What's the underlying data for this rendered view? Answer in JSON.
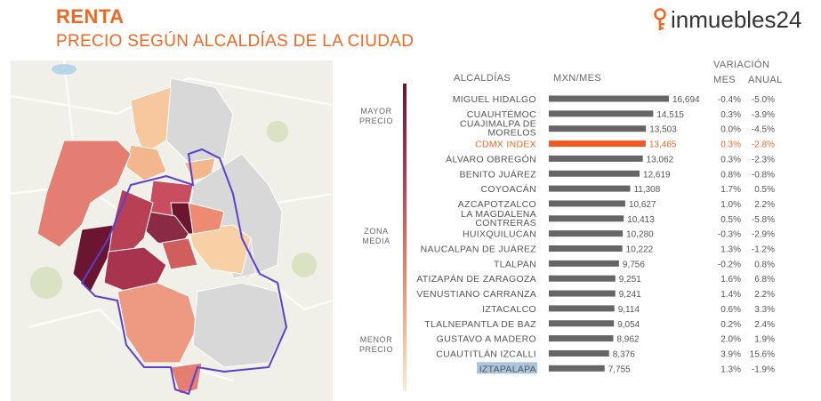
{
  "header": {
    "title": "RENTA",
    "subtitle": "PRECIO SEGÚN ALCALDÍAS DE LA CIUDAD",
    "brand": "inmuebles24"
  },
  "scale": {
    "top": [
      "MAYOR",
      "PRECIO"
    ],
    "middle": [
      "ZONA",
      "MEDIA"
    ],
    "bottom": [
      "MENOR",
      "PRECIO"
    ]
  },
  "colors": {
    "accent": "#f26722",
    "bar": "#666666",
    "highlight_bar": "#f15a24",
    "selection": "#a9c6dd",
    "map_dark": "#6b1531",
    "map_light": "#fcd3a4",
    "map_outline": "#5b3fd1"
  },
  "chart_data": {
    "type": "bar",
    "orientation": "horizontal",
    "columns": {
      "category": "ALCALDÍAS",
      "value": "MXN/MES",
      "variation": "VARIACIÓN",
      "monthly": "MES",
      "annual": "ANUAL"
    },
    "highlight": "CDMX INDEX",
    "selected": "IZTAPALAPA",
    "rows": [
      {
        "name": [
          "MIGUEL HIDALGO"
        ],
        "value": 16694,
        "label": "16,694",
        "mes": "-0.4%",
        "anual": "-5.0%"
      },
      {
        "name": [
          "CUAUHTÉMOC"
        ],
        "value": 14515,
        "label": "14,515",
        "mes": "0.3%",
        "anual": "-3.9%"
      },
      {
        "name": [
          "CUAJIMALPA DE",
          "MORELOS"
        ],
        "value": 13503,
        "label": "13,503",
        "mes": "0.0%",
        "anual": "-4.5%"
      },
      {
        "name": [
          "CDMX INDEX"
        ],
        "value": 13465,
        "label": "13,465",
        "mes": "0.3%",
        "anual": "-2.8%"
      },
      {
        "name": [
          "ÁLVARO OBREGÓN"
        ],
        "value": 13062,
        "label": "13,062",
        "mes": "0.3%",
        "anual": "-2.3%"
      },
      {
        "name": [
          "BENITO JUÁREZ"
        ],
        "value": 12619,
        "label": "12,619",
        "mes": "0.8%",
        "anual": "-0.8%"
      },
      {
        "name": [
          "COYOACÁN"
        ],
        "value": 11308,
        "label": "11,308",
        "mes": "1.7%",
        "anual": "0.5%"
      },
      {
        "name": [
          "AZCAPOTZALCO"
        ],
        "value": 10627,
        "label": "10,627",
        "mes": "1.0%",
        "anual": "2.2%"
      },
      {
        "name": [
          "LA MAGDALENA",
          "CONTRERAS"
        ],
        "value": 10413,
        "label": "10,413",
        "mes": "0.5%",
        "anual": "-5.8%"
      },
      {
        "name": [
          "HUIXQUILUCAN"
        ],
        "value": 10280,
        "label": "10,280",
        "mes": "-0.3%",
        "anual": "-2.9%"
      },
      {
        "name": [
          "NAUCALPAN DE JUÁREZ"
        ],
        "value": 10222,
        "label": "10,222",
        "mes": "1.3%",
        "anual": "-1.2%"
      },
      {
        "name": [
          "TLALPAN"
        ],
        "value": 9756,
        "label": "9,756",
        "mes": "-0.2%",
        "anual": "0.8%"
      },
      {
        "name": [
          "ATIZAPÁN DE ZARAGOZA"
        ],
        "value": 9251,
        "label": "9,251",
        "mes": "1.6%",
        "anual": "6.8%"
      },
      {
        "name": [
          "VENUSTIANO CARRANZA"
        ],
        "value": 9241,
        "label": "9,241",
        "mes": "1.4%",
        "anual": "2.2%"
      },
      {
        "name": [
          "IZTACALCO"
        ],
        "value": 9114,
        "label": "9,114",
        "mes": "0.6%",
        "anual": "3.3%"
      },
      {
        "name": [
          "TLALNEPANTLA DE BAZ"
        ],
        "value": 9054,
        "label": "9,054",
        "mes": "0.2%",
        "anual": "2.4%"
      },
      {
        "name": [
          "GUSTAVO A MADERO"
        ],
        "value": 8962,
        "label": "8,962",
        "mes": "2.0%",
        "anual": "1.9%"
      },
      {
        "name": [
          "CUAUTITLÁN IZCALLI"
        ],
        "value": 8376,
        "label": "8,376",
        "mes": "3.9%",
        "anual": "15.6%"
      },
      {
        "name": [
          "IZTAPALAPA"
        ],
        "value": 7755,
        "label": "7,755",
        "mes": "1.3%",
        "anual": "-1.9%"
      }
    ]
  }
}
